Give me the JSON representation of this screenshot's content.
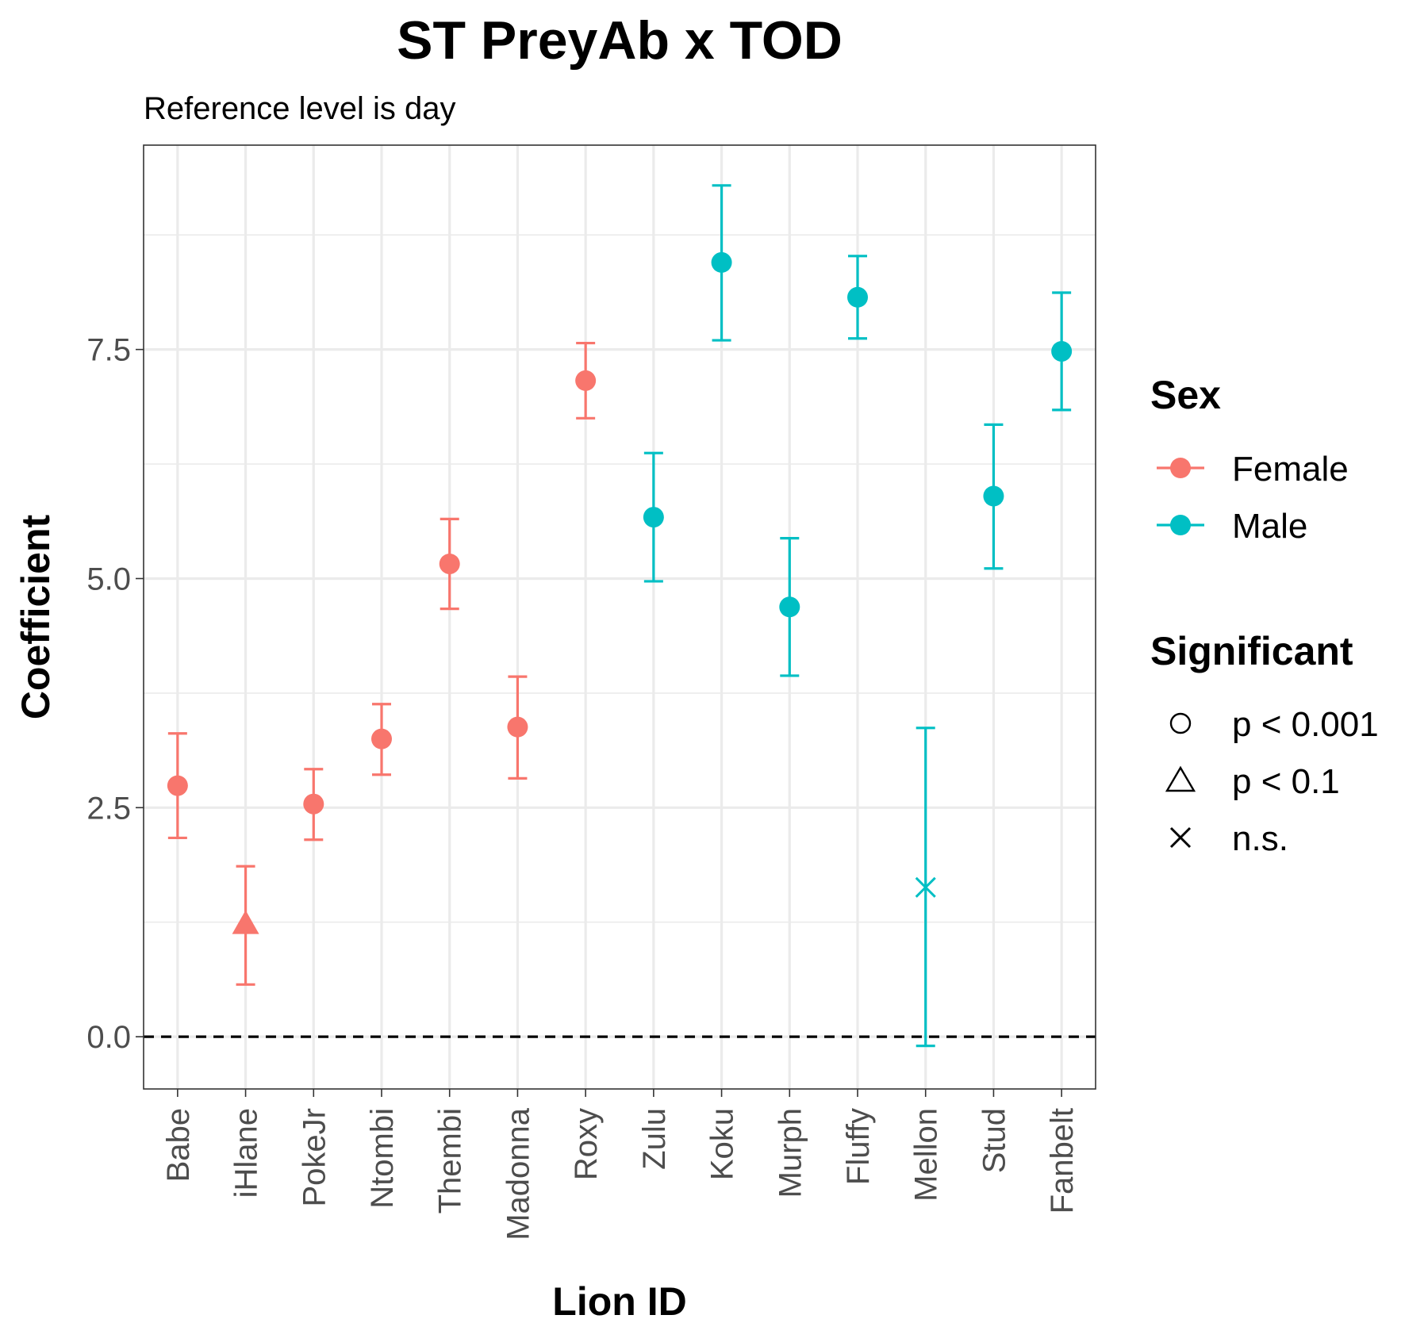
{
  "chart_data": {
    "type": "scatter",
    "title": "ST PreyAb x TOD",
    "subtitle": "Reference level is day",
    "xlabel": "Lion ID",
    "ylabel": "Coefficient",
    "ylim": [
      -0.57,
      9.73
    ],
    "yticks": [
      0.0,
      2.5,
      5.0,
      7.5
    ],
    "ytick_labels": [
      "0.0",
      "2.5",
      "5.0",
      "7.5"
    ],
    "reference_line": 0,
    "grid": true,
    "categories": [
      "Babe",
      "iHlane",
      "PokeJr",
      "Ntombi",
      "Thembi",
      "Madonna",
      "Roxy",
      "Zulu",
      "Koku",
      "Murph",
      "Fluffy",
      "Mellon",
      "Stud",
      "Fanbelt"
    ],
    "points": [
      {
        "lion": "Babe",
        "sex": "Female",
        "significance": "p < 0.001",
        "estimate": 2.74,
        "lower": 2.17,
        "upper": 3.31
      },
      {
        "lion": "iHlane",
        "sex": "Female",
        "significance": "p < 0.1",
        "estimate": 1.22,
        "lower": 0.57,
        "upper": 1.86
      },
      {
        "lion": "PokeJr",
        "sex": "Female",
        "significance": "p < 0.001",
        "estimate": 2.54,
        "lower": 2.15,
        "upper": 2.92
      },
      {
        "lion": "Ntombi",
        "sex": "Female",
        "significance": "p < 0.001",
        "estimate": 3.25,
        "lower": 2.86,
        "upper": 3.63
      },
      {
        "lion": "Thembi",
        "sex": "Female",
        "significance": "p < 0.001",
        "estimate": 5.16,
        "lower": 4.67,
        "upper": 5.65
      },
      {
        "lion": "Madonna",
        "sex": "Female",
        "significance": "p < 0.001",
        "estimate": 3.38,
        "lower": 2.82,
        "upper": 3.93
      },
      {
        "lion": "Roxy",
        "sex": "Female",
        "significance": "p < 0.001",
        "estimate": 7.16,
        "lower": 6.75,
        "upper": 7.57
      },
      {
        "lion": "Zulu",
        "sex": "Male",
        "significance": "p < 0.001",
        "estimate": 5.67,
        "lower": 4.97,
        "upper": 6.37
      },
      {
        "lion": "Koku",
        "sex": "Male",
        "significance": "p < 0.001",
        "estimate": 8.45,
        "lower": 7.6,
        "upper": 9.29
      },
      {
        "lion": "Murph",
        "sex": "Male",
        "significance": "p < 0.001",
        "estimate": 4.69,
        "lower": 3.94,
        "upper": 5.44
      },
      {
        "lion": "Fluffy",
        "sex": "Male",
        "significance": "p < 0.001",
        "estimate": 8.07,
        "lower": 7.62,
        "upper": 8.52
      },
      {
        "lion": "Mellon",
        "sex": "Male",
        "significance": "n.s.",
        "estimate": 1.63,
        "lower": -0.1,
        "upper": 3.37
      },
      {
        "lion": "Stud",
        "sex": "Male",
        "significance": "p < 0.001",
        "estimate": 5.9,
        "lower": 5.11,
        "upper": 6.68
      },
      {
        "lion": "Fanbelt",
        "sex": "Male",
        "significance": "p < 0.001",
        "estimate": 7.48,
        "lower": 6.84,
        "upper": 8.12
      }
    ],
    "legend": {
      "placement": "right",
      "color": {
        "title": "Sex",
        "entries": [
          {
            "label": "Female",
            "color": "#F8766D"
          },
          {
            "label": "Male",
            "color": "#00BFC4"
          }
        ]
      },
      "shape": {
        "title": "Significant",
        "entries": [
          {
            "label": "p < 0.001",
            "shape": "circle"
          },
          {
            "label": "p < 0.1",
            "shape": "triangle"
          },
          {
            "label": "n.s.",
            "shape": "cross"
          }
        ]
      }
    },
    "colors": {
      "Female": "#F8766D",
      "Male": "#00BFC4"
    }
  }
}
